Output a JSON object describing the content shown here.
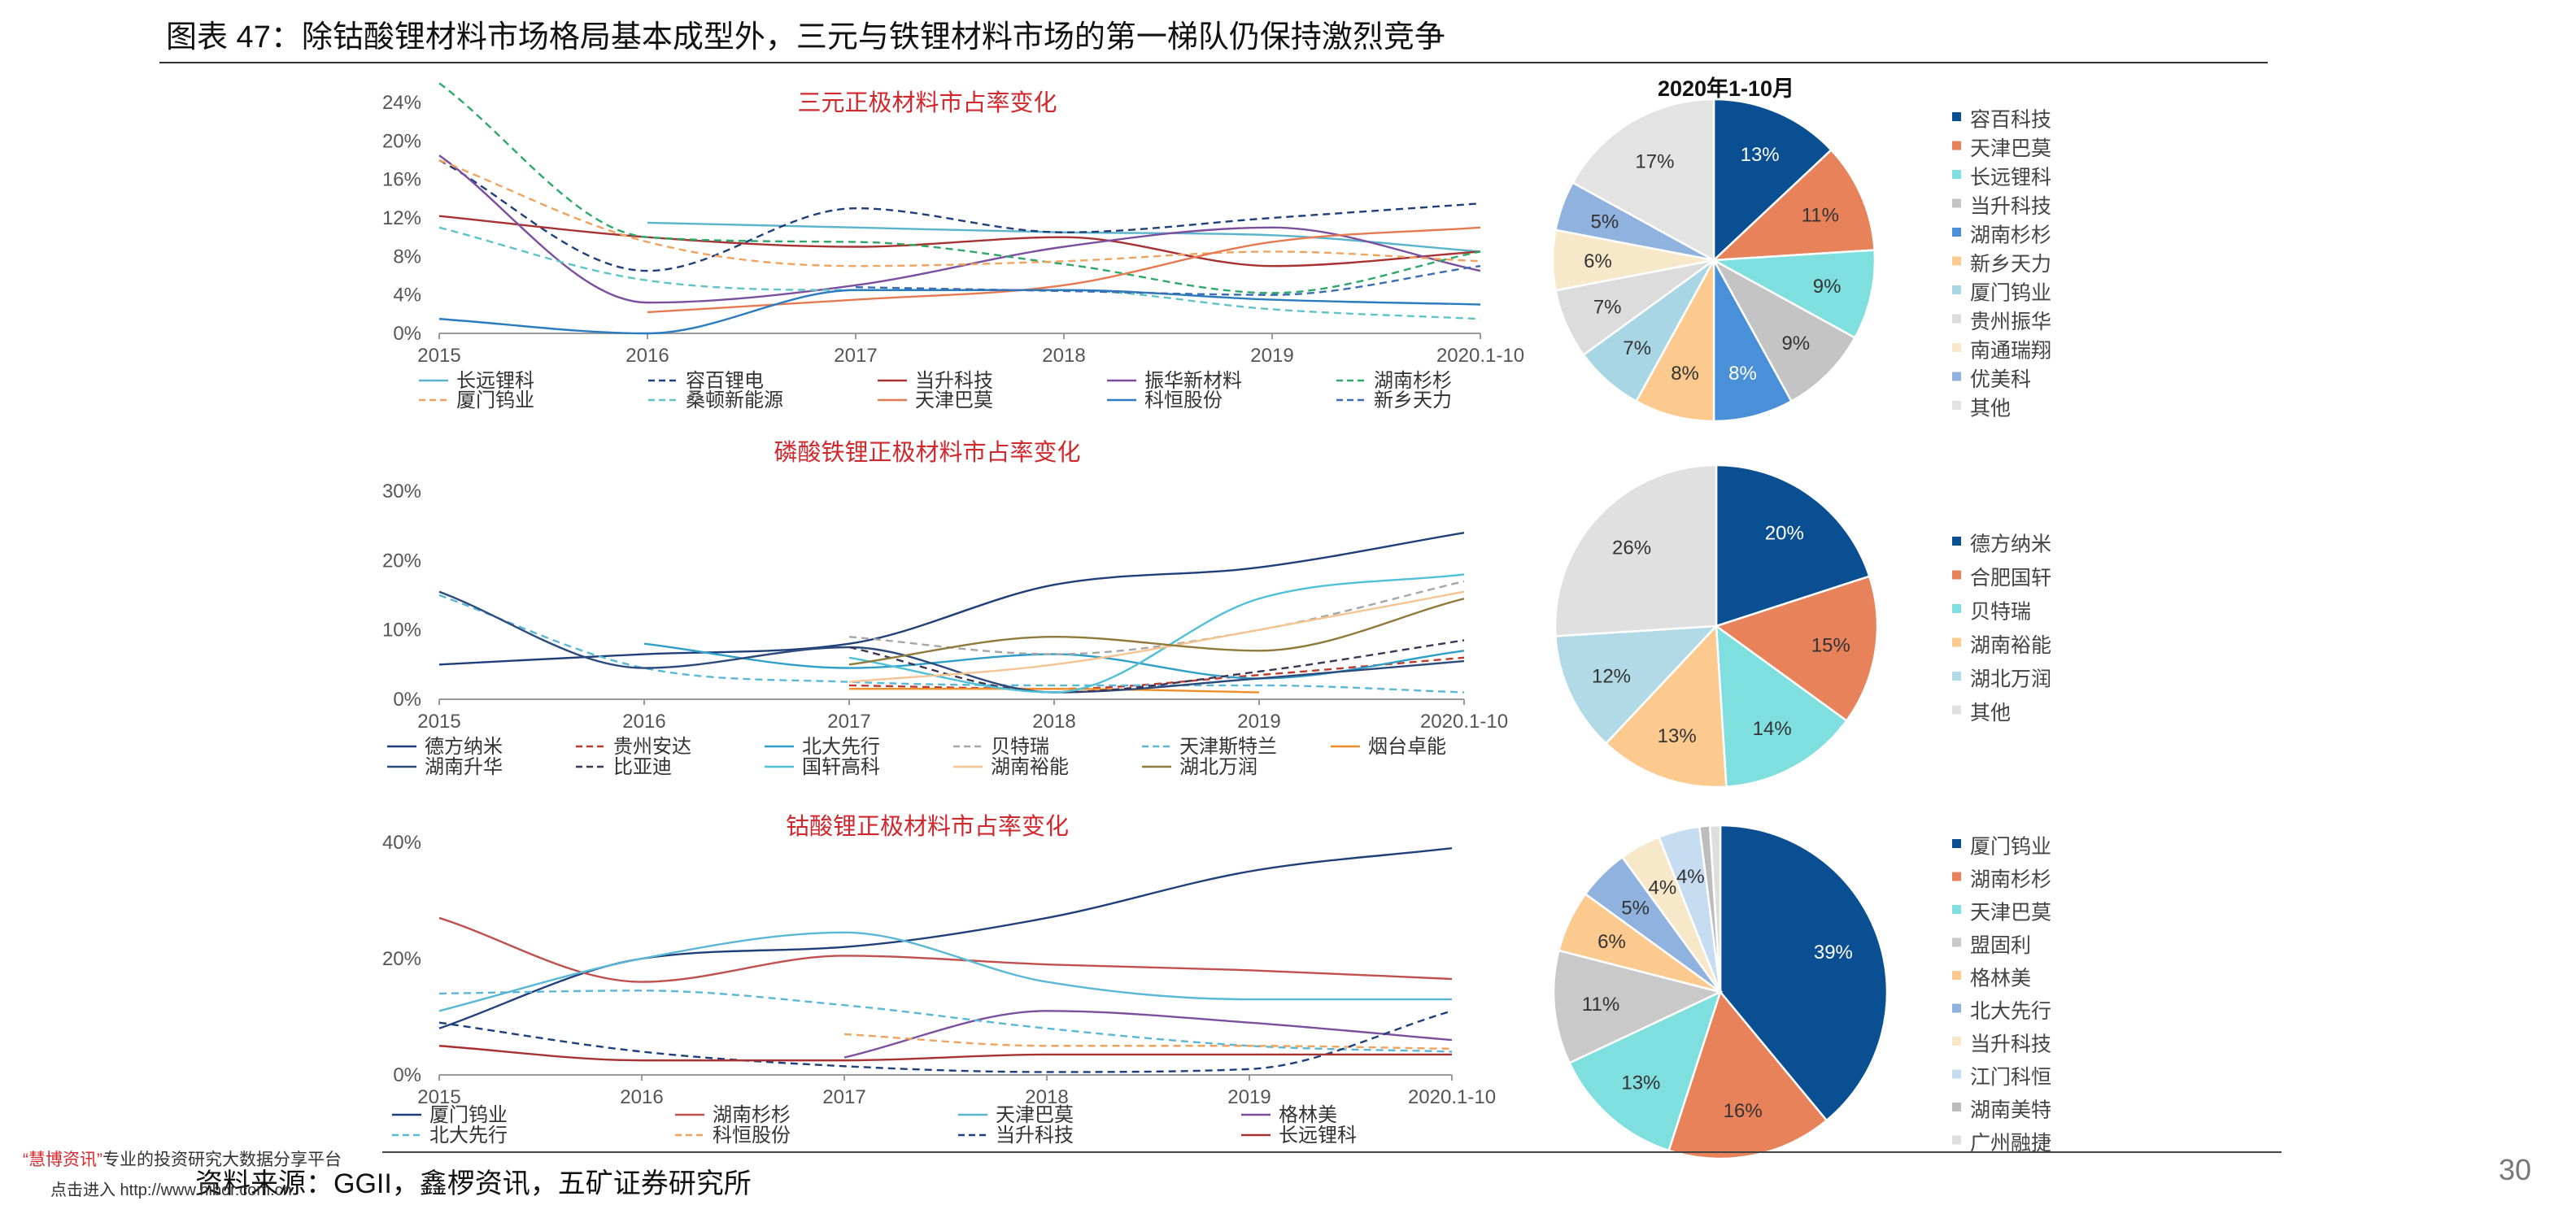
{
  "page": {
    "title": "图表 47：除钴酸锂材料市场格局基本成型外，三元与铁锂材料市场的第一梯队仍保持激烈竞争",
    "source": "资料来源：GGII，鑫椤资讯，五矿证券研究所",
    "page_number": "30",
    "watermark": {
      "brand": "“慧博资讯”",
      "text": "专业的投资研究大数据分享平台",
      "link_text": "点击进入 http://www.hibor.com.cn"
    }
  },
  "chart_data": [
    {
      "id": "ternary-line",
      "type": "line",
      "title": "三元正极材料市占率变化",
      "x": [
        "2015",
        "2016",
        "2017",
        "2018",
        "2019",
        "2020.1-10"
      ],
      "ylim": [
        0,
        24
      ],
      "yticks": [
        0,
        4,
        8,
        12,
        16,
        20,
        24
      ],
      "yformat": "percent",
      "grid": false,
      "legend_location": "bottom",
      "legend_columns": 5,
      "series": [
        {
          "name": "长远锂科",
          "color": "#5ab4cc",
          "dash": false,
          "values": [
            null,
            11.5,
            11,
            10.5,
            10.2,
            8.5
          ]
        },
        {
          "name": "容百锂电",
          "color": "#1f3f7a",
          "dash": true,
          "values": [
            18,
            6.5,
            13,
            10.5,
            12,
            13.5
          ]
        },
        {
          "name": "当升科技",
          "color": "#a83232",
          "dash": false,
          "values": [
            12.2,
            10,
            9,
            10,
            7,
            8.5
          ]
        },
        {
          "name": "振华新材料",
          "color": "#7b4f9e",
          "dash": false,
          "values": [
            18.5,
            3.2,
            5,
            9,
            11,
            6.5
          ]
        },
        {
          "name": "湖南杉杉",
          "color": "#2ea868",
          "dash": true,
          "values": [
            26,
            10,
            9.5,
            7.2,
            4.2,
            8.5
          ]
        },
        {
          "name": "厦门钨业",
          "color": "#f0a35c",
          "dash": true,
          "values": [
            18,
            9.5,
            7,
            7.5,
            8.5,
            7.5
          ]
        },
        {
          "name": "桑顿新能源",
          "color": "#5fc4c6",
          "dash": true,
          "values": [
            11,
            5.5,
            4.5,
            4.5,
            2.5,
            1.5
          ]
        },
        {
          "name": "天津巴莫",
          "color": "#e57a52",
          "dash": false,
          "values": [
            null,
            2.2,
            3.5,
            5,
            9.5,
            11
          ]
        },
        {
          "name": "科恒股份",
          "color": "#2b7bbf",
          "dash": false,
          "values": [
            1.5,
            0,
            4.5,
            4.5,
            3.5,
            3
          ]
        },
        {
          "name": "新乡天力",
          "color": "#3c6db0",
          "dash": true,
          "values": [
            null,
            null,
            4.8,
            4.4,
            4.0,
            7
          ]
        }
      ]
    },
    {
      "id": "ternary-pie",
      "type": "pie",
      "title": "2020年1-10月",
      "legend_location": "right",
      "slices": [
        {
          "name": "容百科技",
          "value": 13,
          "label": "13%",
          "color": "#0b4f93"
        },
        {
          "name": "天津巴莫",
          "value": 11,
          "label": "11%",
          "color": "#e8825b"
        },
        {
          "name": "长远锂科",
          "value": 9,
          "label": "9%",
          "color": "#7fdede"
        },
        {
          "name": "当升科技",
          "value": 9,
          "label": "9%",
          "color": "#c4c4c4"
        },
        {
          "name": "湖南杉杉",
          "value": 8,
          "label": "8%",
          "color": "#4a90d9"
        },
        {
          "name": "新乡天力",
          "value": 8,
          "label": "8%",
          "color": "#fcc98f"
        },
        {
          "name": "厦门钨业",
          "value": 7,
          "label": "7%",
          "color": "#a9d6e5"
        },
        {
          "name": "贵州振华",
          "value": 7,
          "label": "7%",
          "color": "#dcdcdc"
        },
        {
          "name": "南通瑞翔",
          "value": 6,
          "label": "6%",
          "color": "#f6e8c8"
        },
        {
          "name": "优美科",
          "value": 5,
          "label": "5%",
          "color": "#8fb3de"
        },
        {
          "name": "其他",
          "value": 17,
          "label": "17%",
          "color": "#e3e3e3"
        }
      ]
    },
    {
      "id": "lfp-line",
      "type": "line",
      "title": "磷酸铁锂正极材料市占率变化",
      "x": [
        "2015",
        "2016",
        "2017",
        "2018",
        "2019",
        "2020.1-10"
      ],
      "ylim": [
        0,
        30
      ],
      "yticks": [
        0,
        10,
        20,
        30
      ],
      "yformat": "percent",
      "grid": false,
      "legend_location": "bottom",
      "legend_columns": 6,
      "series": [
        {
          "name": "德方纳米",
          "color": "#1f3f7a",
          "dash": false,
          "values": [
            5,
            6.5,
            8,
            16.5,
            19,
            24
          ]
        },
        {
          "name": "贵州安达",
          "color": "#c0392b",
          "dash": true,
          "values": [
            null,
            null,
            2,
            1.5,
            3.5,
            6
          ]
        },
        {
          "name": "北大先行",
          "color": "#2f9fc9",
          "dash": false,
          "values": [
            null,
            8,
            4.5,
            6.5,
            3,
            7
          ]
        },
        {
          "name": "贝特瑞",
          "color": "#a6a6a6",
          "dash": true,
          "values": [
            null,
            null,
            9,
            6.5,
            10,
            17
          ]
        },
        {
          "name": "天津斯特兰",
          "color": "#5ab8d6",
          "dash": true,
          "values": [
            15,
            4.5,
            2.5,
            2,
            2,
            1
          ]
        },
        {
          "name": "烟台卓能",
          "color": "#f08c28",
          "dash": false,
          "values": [
            null,
            null,
            1.5,
            1.5,
            1,
            null
          ]
        },
        {
          "name": "湖南升华",
          "color": "#2c4a7c",
          "dash": false,
          "values": [
            15.5,
            4.5,
            7.5,
            1,
            3,
            5.5
          ]
        },
        {
          "name": "比亚迪",
          "color": "#3d3553",
          "dash": true,
          "values": [
            null,
            null,
            7.5,
            1,
            4,
            8.5
          ]
        },
        {
          "name": "国轩高科",
          "color": "#4fc0d8",
          "dash": false,
          "values": [
            null,
            null,
            6,
            1,
            14.5,
            18
          ]
        },
        {
          "name": "湖南裕能",
          "color": "#f6c493",
          "dash": false,
          "values": [
            null,
            null,
            2.5,
            5,
            10,
            15.5
          ]
        },
        {
          "name": "湖北万润",
          "color": "#8f7a3c",
          "dash": false,
          "values": [
            null,
            null,
            5,
            9,
            7,
            14.5
          ]
        }
      ]
    },
    {
      "id": "lfp-pie",
      "type": "pie",
      "title": "",
      "legend_location": "right",
      "slices": [
        {
          "name": "德方纳米",
          "value": 20,
          "label": "20%",
          "color": "#0b4f93"
        },
        {
          "name": "合肥国轩",
          "value": 15,
          "label": "15%",
          "color": "#e8825b"
        },
        {
          "name": "贝特瑞",
          "value": 14,
          "label": "14%",
          "color": "#7fdede"
        },
        {
          "name": "湖南裕能",
          "value": 13,
          "label": "13%",
          "color": "#fcc98f"
        },
        {
          "name": "湖北万润",
          "value": 12,
          "label": "12%",
          "color": "#b2dae6"
        },
        {
          "name": "其他",
          "value": 26,
          "label": "26%",
          "color": "#e0e0e0"
        }
      ]
    },
    {
      "id": "lco-line",
      "type": "line",
      "title": "钴酸锂正极材料市占率变化",
      "x": [
        "2015",
        "2016",
        "2017",
        "2018",
        "2019",
        "2020.1-10"
      ],
      "ylim": [
        0,
        40
      ],
      "yticks": [
        0,
        20,
        40
      ],
      "yformat": "percent",
      "grid": false,
      "legend_location": "bottom",
      "legend_columns": 4,
      "series": [
        {
          "name": "厦门钨业",
          "color": "#1f3f7a",
          "dash": false,
          "values": [
            8,
            20,
            22,
            27,
            35,
            39
          ]
        },
        {
          "name": "湖南杉杉",
          "color": "#c0504d",
          "dash": false,
          "values": [
            27,
            16,
            20.5,
            19,
            18,
            16.5
          ]
        },
        {
          "name": "天津巴莫",
          "color": "#5ab8d6",
          "dash": false,
          "values": [
            11,
            20,
            24.5,
            16,
            13,
            13
          ]
        },
        {
          "name": "格林美",
          "color": "#7b4f9e",
          "dash": false,
          "values": [
            null,
            null,
            3,
            11,
            9,
            6
          ]
        },
        {
          "name": "北大先行",
          "color": "#5ab8d6",
          "dash": true,
          "values": [
            14,
            14.5,
            12,
            8,
            5,
            4
          ]
        },
        {
          "name": "科恒股份",
          "color": "#f0a35c",
          "dash": true,
          "values": [
            null,
            null,
            7,
            5,
            5,
            4.5
          ]
        },
        {
          "name": "当升科技",
          "color": "#1f3f7a",
          "dash": true,
          "values": [
            9,
            4,
            1.5,
            0.5,
            1,
            11
          ]
        },
        {
          "name": "长远锂科",
          "color": "#a83232",
          "dash": false,
          "values": [
            5,
            2.5,
            2.5,
            3.5,
            3.5,
            3.5
          ]
        }
      ]
    },
    {
      "id": "lco-pie",
      "type": "pie",
      "title": "",
      "legend_location": "right",
      "slices": [
        {
          "name": "厦门钨业",
          "value": 39,
          "label": "39%",
          "color": "#0b4f93"
        },
        {
          "name": "湖南杉杉",
          "value": 16,
          "label": "16%",
          "color": "#e8825b"
        },
        {
          "name": "天津巴莫",
          "value": 13,
          "label": "13%",
          "color": "#7fdede"
        },
        {
          "name": "盟固利",
          "value": 11,
          "label": "11%",
          "color": "#c9c9c9"
        },
        {
          "name": "格林美",
          "value": 6,
          "label": "6%",
          "color": "#fcc98f"
        },
        {
          "name": "北大先行",
          "value": 5,
          "label": "5%",
          "color": "#8fb3de"
        },
        {
          "name": "当升科技",
          "value": 4,
          "label": "4%",
          "color": "#f6e8c8"
        },
        {
          "name": "江门科恒",
          "value": 4,
          "label": "4%",
          "color": "#c6dcf0"
        },
        {
          "name": "湖南美特",
          "value": 1,
          "label": "",
          "color": "#bdbdbd"
        },
        {
          "name": "广州融捷",
          "value": 1,
          "label": "",
          "color": "#dedede"
        }
      ]
    }
  ]
}
